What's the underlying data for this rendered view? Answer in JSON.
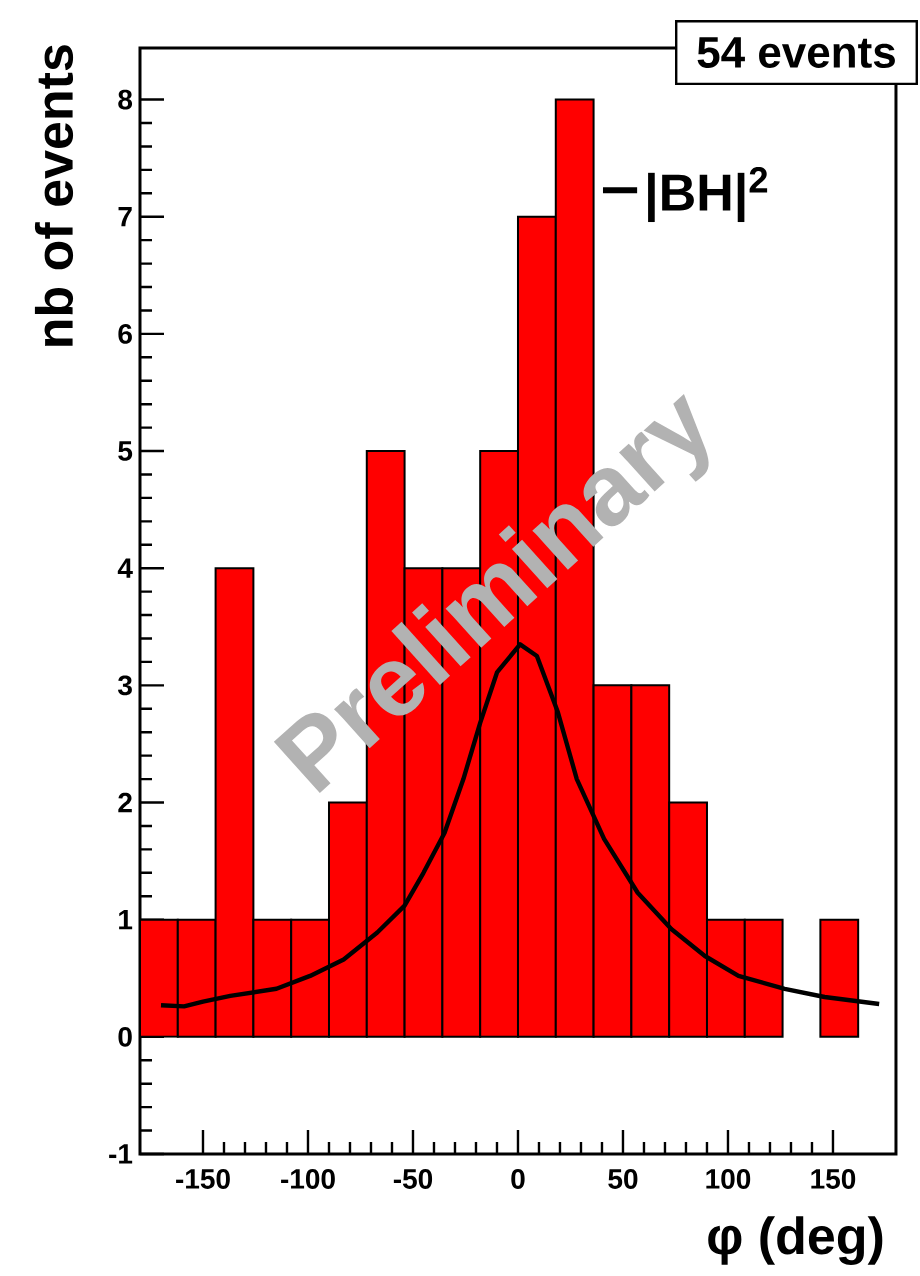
{
  "chart_data": {
    "type": "histogram",
    "xlabel": "φ (deg)",
    "ylabel": "nb of events",
    "xlim": [
      -180,
      180
    ],
    "ylim": [
      -1,
      8.44
    ],
    "xticks": [
      -150,
      -100,
      -50,
      0,
      50,
      100,
      150
    ],
    "yticks": [
      -1,
      0,
      1,
      2,
      3,
      4,
      5,
      6,
      7,
      8
    ],
    "legend": "top right",
    "annotations": [
      "54 events",
      "Preliminary"
    ],
    "series": [
      {
        "color": "#ff0000",
        "bins": [
          -180,
          -162,
          -144,
          -126,
          -108,
          -90,
          -72,
          -54,
          -36,
          -18,
          0,
          18,
          36,
          54,
          72,
          90,
          108,
          126,
          144,
          162,
          180
        ],
        "values": [
          1,
          1,
          4,
          1,
          1,
          2,
          5,
          4,
          4,
          5,
          7,
          8,
          3,
          3,
          2,
          1,
          1,
          0,
          1,
          0
        ]
      },
      {
        "type": "line",
        "name": "|BH|$^{2}$",
        "color": "#000000",
        "x": [
          -170,
          -159,
          -150,
          -137,
          -115,
          -99,
          -83,
          -67,
          -54,
          -45,
          -35,
          -26,
          -18,
          -10,
          1,
          9,
          19,
          28,
          41,
          57,
          73,
          89,
          105,
          127,
          146,
          172
        ],
        "values": [
          0.27,
          0.26,
          0.3,
          0.35,
          0.41,
          0.52,
          0.66,
          0.89,
          1.12,
          1.4,
          1.74,
          2.2,
          2.68,
          3.11,
          3.35,
          3.25,
          2.77,
          2.2,
          1.69,
          1.23,
          0.92,
          0.69,
          0.52,
          0.41,
          0.34,
          0.28
        ]
      }
    ]
  }
}
